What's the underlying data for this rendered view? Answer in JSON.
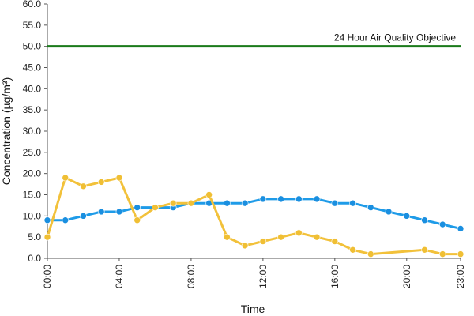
{
  "chart_data": {
    "type": "line",
    "title": "",
    "xlabel": "Time",
    "ylabel": "Concentration (µg/m³)",
    "ylim": [
      0,
      60
    ],
    "y_ticks": [
      "0.0",
      "5.0",
      "10.0",
      "15.0",
      "20.0",
      "25.0",
      "30.0",
      "35.0",
      "40.0",
      "45.0",
      "50.0",
      "55.0",
      "60.0"
    ],
    "x_ticks": [
      "00:00",
      "04:00",
      "08:00",
      "12:00",
      "16:00",
      "20:00",
      "23:00"
    ],
    "x_tick_hours": [
      0,
      4,
      8,
      12,
      16,
      20,
      23
    ],
    "xlim": [
      0,
      23
    ],
    "grid": false,
    "objective": {
      "label": "24 Hour Air Quality Objective",
      "value": 50,
      "color": "#1a7a1a"
    },
    "series": [
      {
        "color": "#1e9be8",
        "marker_color": "#1a8fe0",
        "points": [
          [
            0,
            9
          ],
          [
            1,
            9
          ],
          [
            2,
            10
          ],
          [
            3,
            11
          ],
          [
            4,
            11
          ],
          [
            5,
            12
          ],
          [
            6,
            12
          ],
          [
            7,
            12
          ],
          [
            8,
            13
          ],
          [
            9,
            13
          ],
          [
            10,
            13
          ],
          [
            11,
            13
          ],
          [
            12,
            14
          ],
          [
            13,
            14
          ],
          [
            14,
            14
          ],
          [
            15,
            14
          ],
          [
            16,
            13
          ],
          [
            17,
            13
          ],
          [
            18,
            12
          ],
          [
            19,
            11
          ],
          [
            20,
            10
          ],
          [
            21,
            9
          ],
          [
            22,
            8
          ],
          [
            23,
            7
          ]
        ]
      },
      {
        "color": "#f2c13a",
        "marker_color": "#f0bf34",
        "points": [
          [
            0,
            5
          ],
          [
            1,
            19
          ],
          [
            2,
            17
          ],
          [
            3,
            18
          ],
          [
            4,
            19
          ],
          [
            5,
            9
          ],
          [
            6,
            12
          ],
          [
            7,
            13
          ],
          [
            8,
            13
          ],
          [
            9,
            15
          ],
          [
            10,
            5
          ],
          [
            11,
            3
          ],
          [
            12,
            4
          ],
          [
            13,
            5
          ],
          [
            14,
            6
          ],
          [
            15,
            5
          ],
          [
            16,
            4
          ],
          [
            17,
            2
          ],
          [
            18,
            1
          ],
          [
            21,
            2
          ],
          [
            22,
            1
          ],
          [
            23,
            1
          ]
        ]
      }
    ]
  }
}
